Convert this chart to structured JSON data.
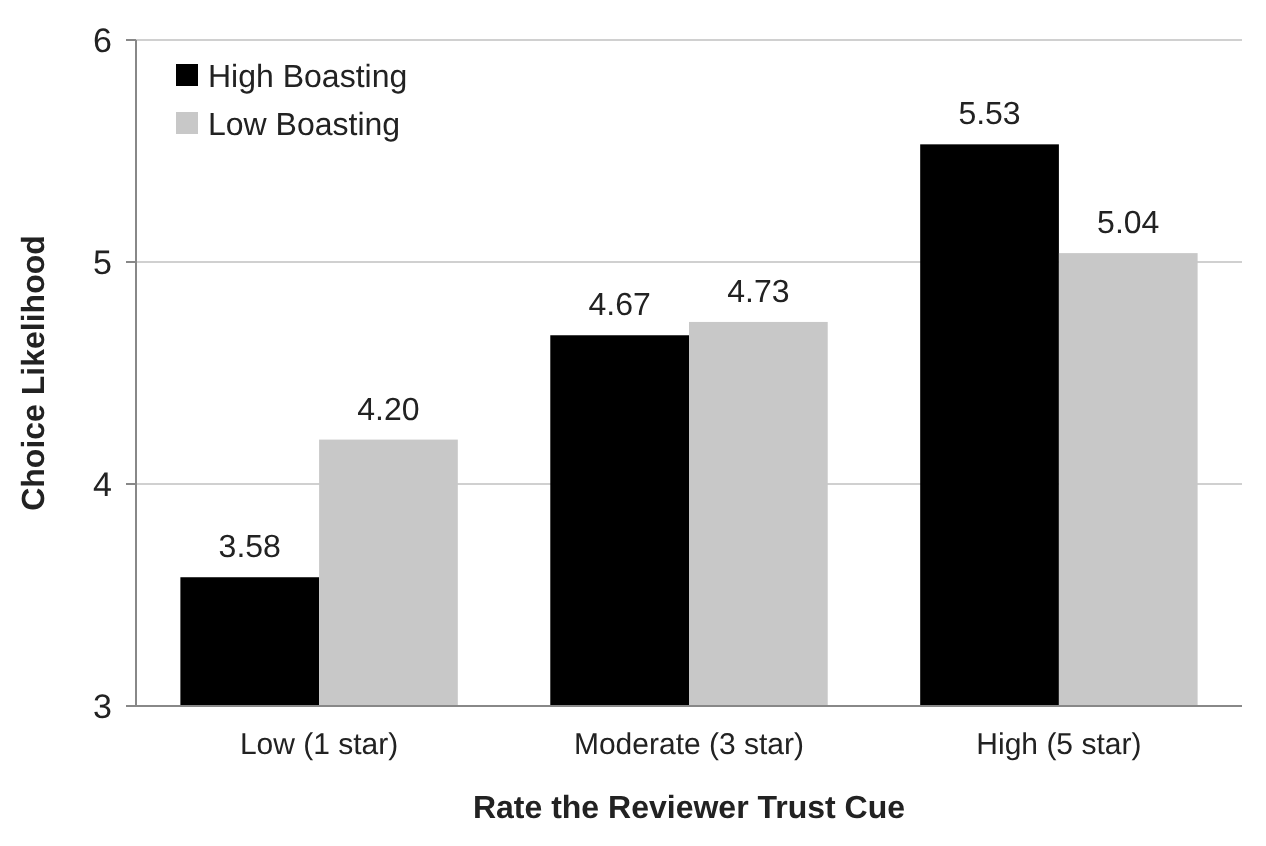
{
  "chart_data": {
    "type": "bar",
    "xlabel": "Rate the Reviewer Trust Cue",
    "ylabel": "Choice Likelihood",
    "categories": [
      "Low (1 star)",
      "Moderate (3 star)",
      "High (5 star)"
    ],
    "series": [
      {
        "name": "High Boasting",
        "color": "#000000",
        "values": [
          3.58,
          4.67,
          5.53
        ],
        "value_labels": [
          "3.58",
          "4.67",
          "5.53"
        ]
      },
      {
        "name": "Low Boasting",
        "color": "#c8c8c8",
        "values": [
          4.2,
          4.73,
          5.04
        ],
        "value_labels": [
          "4.20",
          "4.73",
          "5.04"
        ]
      }
    ],
    "ylim": [
      3,
      6
    ],
    "yticks": [
      3,
      4,
      5,
      6
    ],
    "grid": "y",
    "legend": "top left"
  }
}
